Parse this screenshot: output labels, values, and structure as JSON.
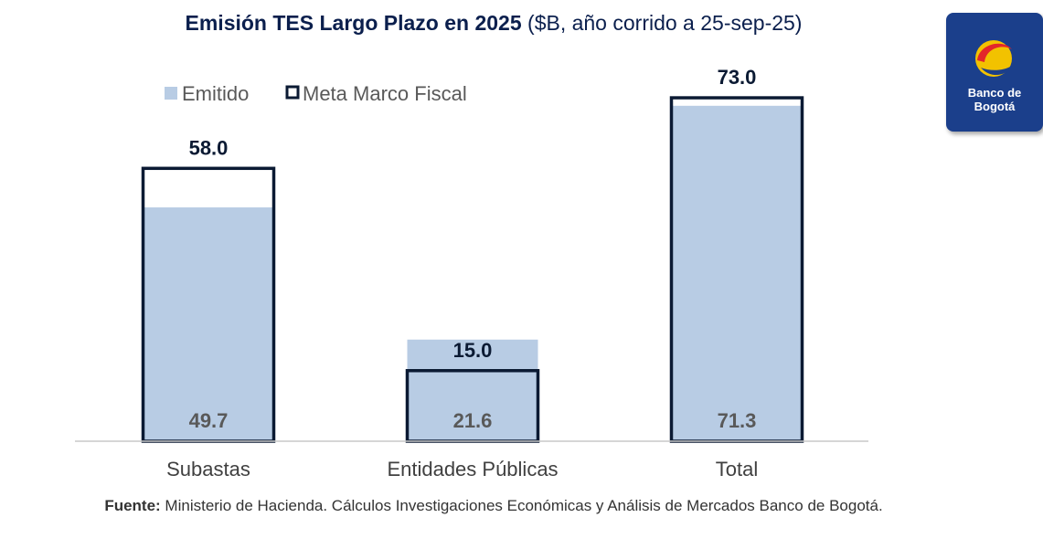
{
  "header": {
    "title_bold": "Emisión TES Largo Plazo en 2025",
    "title_rest": " ($B, año corrido a 25-sep-25)"
  },
  "logo": {
    "line1": "Banco de",
    "line2": "Bogotá",
    "icon": "bank-logo-icon"
  },
  "footer": {
    "source_label": "Fuente:",
    "source_text": " Ministerio de Hacienda. Cálculos Investigaciones Económicas y Análisis de Mercados Banco de Bogotá."
  },
  "chart_data": {
    "type": "bar",
    "categories": [
      "Subastas",
      "Entidades Públicas",
      "Total"
    ],
    "series": [
      {
        "name": "Emitido",
        "values": [
          49.7,
          21.6,
          71.3
        ],
        "labels": [
          "49.7",
          "21.6",
          "71.3"
        ],
        "color": "#b8cce4",
        "style": "fill"
      },
      {
        "name": "Meta Marco Fiscal",
        "values": [
          58.0,
          15.0,
          73.0
        ],
        "labels": [
          "58.0",
          "15.0",
          "73.0"
        ],
        "color": "#0b1a33",
        "style": "outline"
      }
    ],
    "legend_position": "top-left",
    "grid": false
  }
}
